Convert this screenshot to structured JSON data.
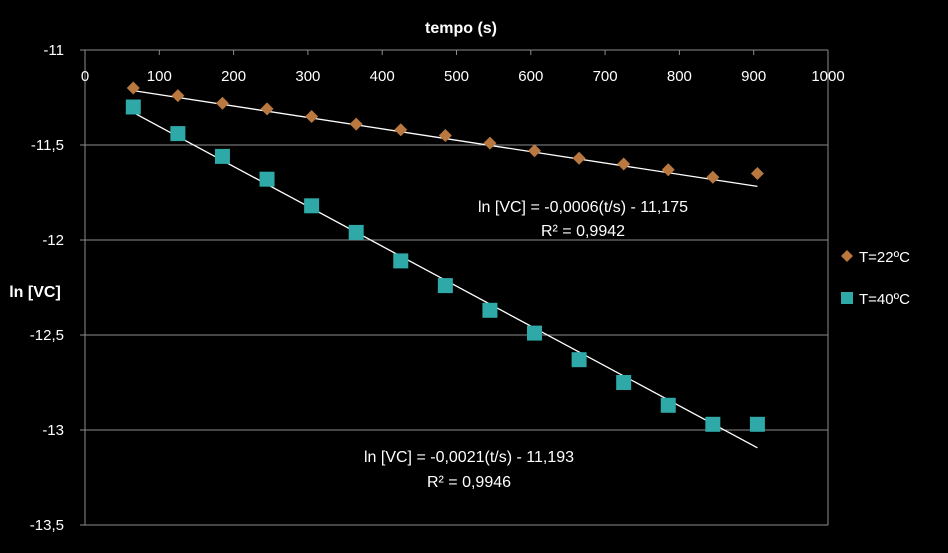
{
  "chart_data": {
    "type": "scatter",
    "title": "",
    "xlabel": "tempo (s)",
    "ylabel": "ln [VC]",
    "xlim": [
      0,
      1000
    ],
    "ylim": [
      -13.5,
      -11
    ],
    "x_ticks": [
      0,
      100,
      200,
      300,
      400,
      500,
      600,
      700,
      800,
      900,
      1000
    ],
    "x_tick_labels": [
      "0",
      "100",
      "200",
      "300",
      "400",
      "500",
      "600",
      "700",
      "800",
      "900",
      "1000"
    ],
    "y_ticks": [
      -11,
      -11.5,
      -12,
      -12.5,
      -13,
      -13.5
    ],
    "y_tick_labels": [
      "-11",
      "-11,5",
      "-12",
      "-12,5",
      "-13",
      "-13,5"
    ],
    "x_axis_position": "top",
    "grid": "horizontal",
    "legend_position": "right",
    "series": [
      {
        "name": "T=22ºC",
        "marker": "diamond",
        "color": "#B8783F",
        "x": [
          65,
          125,
          185,
          245,
          305,
          365,
          425,
          485,
          545,
          605,
          665,
          725,
          785,
          845,
          905
        ],
        "y": [
          -11.2,
          -11.24,
          -11.28,
          -11.31,
          -11.35,
          -11.39,
          -11.42,
          -11.45,
          -11.49,
          -11.53,
          -11.57,
          -11.6,
          -11.63,
          -11.67,
          -11.65
        ],
        "trendline": {
          "slope": -0.0006,
          "intercept": -11.175,
          "x_range": [
            65,
            905
          ]
        },
        "equation": "ln [VC] = -0,0006(t/s) - 11,175",
        "r2": "R² = 0,9942"
      },
      {
        "name": "T=40ºC",
        "marker": "square",
        "color": "#2FA8A8",
        "x": [
          65,
          125,
          185,
          245,
          305,
          365,
          425,
          485,
          545,
          605,
          665,
          725,
          785,
          845,
          905
        ],
        "y": [
          -11.3,
          -11.44,
          -11.56,
          -11.68,
          -11.82,
          -11.96,
          -12.11,
          -12.24,
          -12.37,
          -12.49,
          -12.63,
          -12.75,
          -12.87,
          -12.97,
          -12.97
        ],
        "trendline": {
          "slope": -0.0021,
          "intercept": -11.193,
          "x_range": [
            65,
            905
          ]
        },
        "equation": "ln [VC] = -0,0021(t/s) - 11,193",
        "r2": "R² = 0,9946"
      }
    ]
  },
  "colors": {
    "background": "#000000",
    "grid": "#8C8C8C",
    "axis": "#8C8C8C",
    "trendline": "#FFFFFF",
    "text": "#FFFFFF"
  }
}
